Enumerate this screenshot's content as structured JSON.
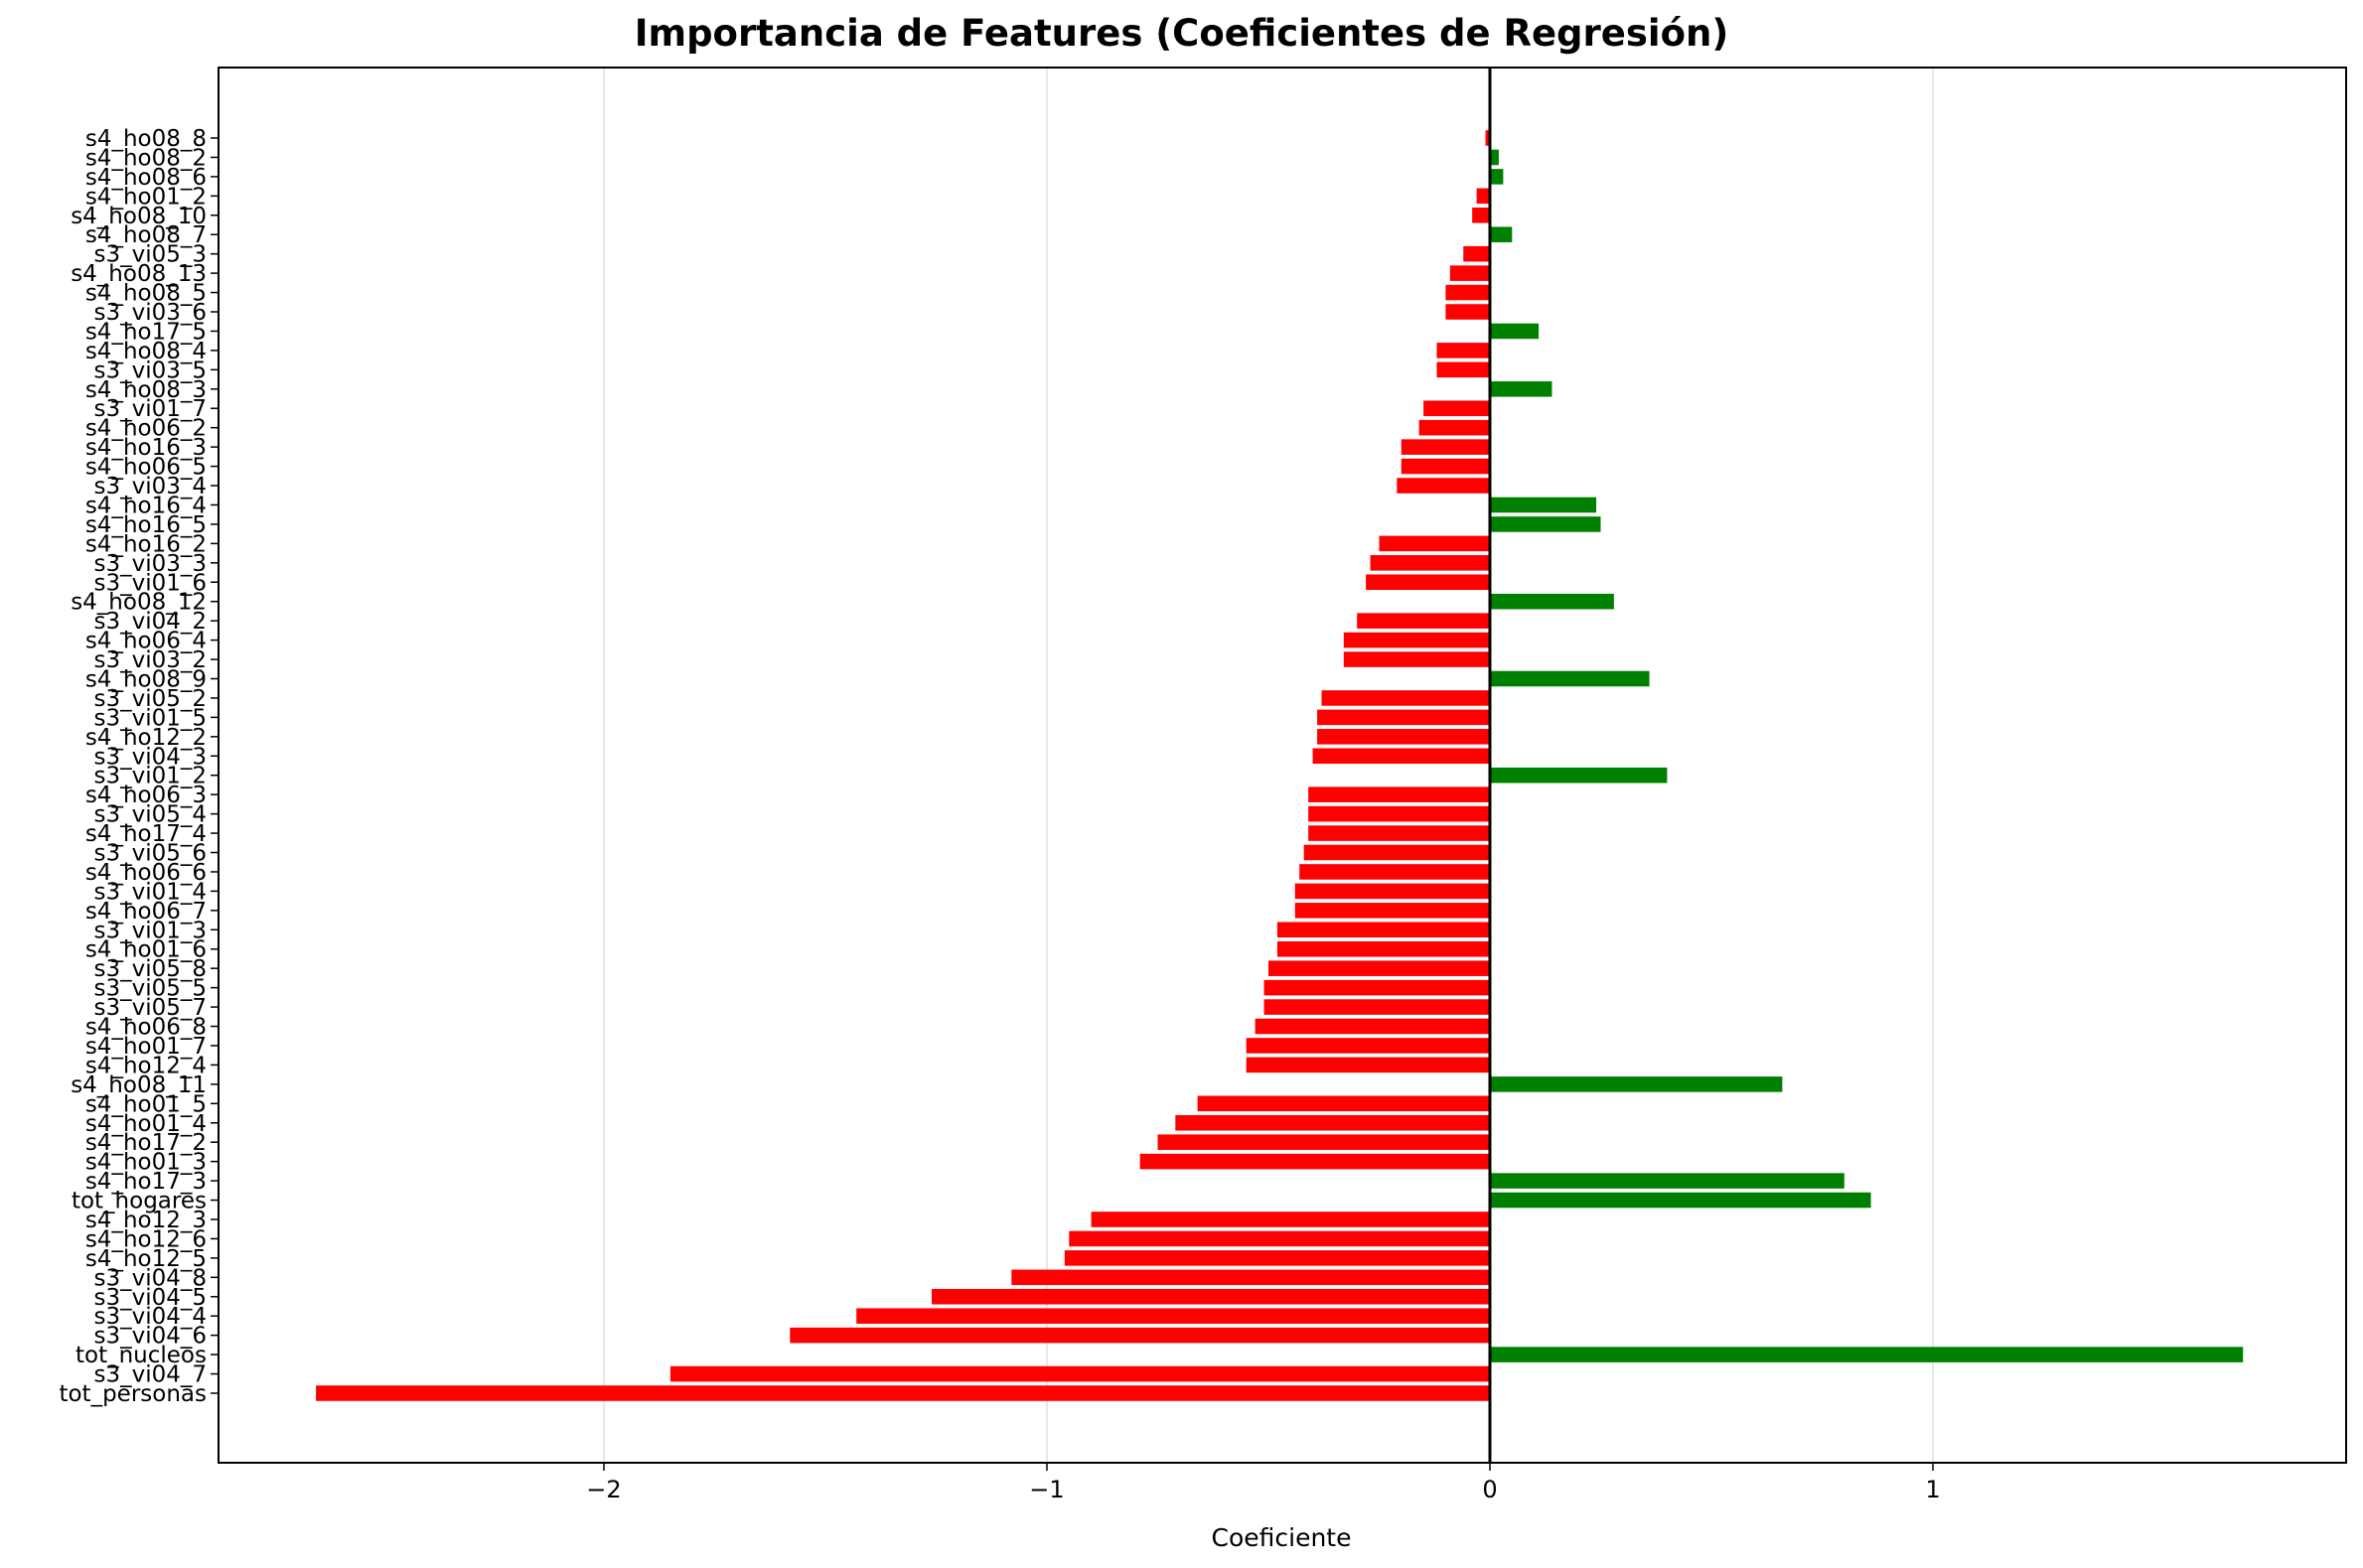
{
  "chart_data": {
    "type": "bar",
    "orientation": "horizontal",
    "title": "Importancia de Features (Coeficientes de Regresión)",
    "xlabel": "Coeficiente",
    "ylabel": "",
    "xlim": [
      -2.86,
      1.92
    ],
    "xticks": [
      -2,
      -1,
      0,
      1
    ],
    "xtick_labels": [
      "−2",
      "−1",
      "0",
      "1"
    ],
    "grid": "x",
    "colors": {
      "positive": "#008000",
      "negative": "#ff0000",
      "zero_line": "#000000",
      "grid": "#e0e0e0"
    },
    "categories": [
      "s4_ho08_8",
      "s4_ho08_2",
      "s4_ho08_6",
      "s4_ho01_2",
      "s4_ho08_10",
      "s4_ho08_7",
      "s3_vi05_3",
      "s4_ho08_13",
      "s4_ho08_5",
      "s3_vi03_6",
      "s4_ho17_5",
      "s4_ho08_4",
      "s3_vi03_5",
      "s4_ho08_3",
      "s3_vi01_7",
      "s4_ho06_2",
      "s4_ho16_3",
      "s4_ho06_5",
      "s3_vi03_4",
      "s4_ho16_4",
      "s4_ho16_5",
      "s4_ho16_2",
      "s3_vi03_3",
      "s3_vi01_6",
      "s4_ho08_12",
      "s3_vi04_2",
      "s4_ho06_4",
      "s3_vi03_2",
      "s4_ho08_9",
      "s3_vi05_2",
      "s3_vi01_5",
      "s4_ho12_2",
      "s3_vi04_3",
      "s3_vi01_2",
      "s4_ho06_3",
      "s3_vi05_4",
      "s4_ho17_4",
      "s3_vi05_6",
      "s4_ho06_6",
      "s3_vi01_4",
      "s4_ho06_7",
      "s3_vi01_3",
      "s4_ho01_6",
      "s3_vi05_8",
      "s3_vi05_5",
      "s3_vi05_7",
      "s4_ho06_8",
      "s4_ho01_7",
      "s4_ho12_4",
      "s4_ho08_11",
      "s4_ho01_5",
      "s4_ho01_4",
      "s4_ho17_2",
      "s4_ho01_3",
      "s4_ho17_3",
      "tot_hogares",
      "s4_ho12_3",
      "s4_ho12_6",
      "s4_ho12_5",
      "s3_vi04_8",
      "s3_vi04_5",
      "s3_vi04_4",
      "s3_vi04_6",
      "tot_nucleos",
      "s3_vi04_7",
      "tot_personas"
    ],
    "values": [
      -0.01,
      0.02,
      0.03,
      -0.03,
      -0.04,
      0.05,
      -0.06,
      -0.09,
      -0.1,
      -0.1,
      0.11,
      -0.12,
      -0.12,
      0.14,
      -0.15,
      -0.16,
      -0.2,
      -0.2,
      -0.21,
      0.24,
      0.25,
      -0.25,
      -0.27,
      -0.28,
      0.28,
      -0.3,
      -0.33,
      -0.33,
      0.36,
      -0.38,
      -0.39,
      -0.39,
      -0.4,
      0.4,
      -0.41,
      -0.41,
      -0.41,
      -0.42,
      -0.43,
      -0.44,
      -0.44,
      -0.48,
      -0.48,
      -0.5,
      -0.51,
      -0.51,
      -0.53,
      -0.55,
      -0.55,
      0.66,
      -0.66,
      -0.71,
      -0.75,
      -0.79,
      0.8,
      0.86,
      -0.9,
      -0.95,
      -0.96,
      -1.08,
      -1.26,
      -1.43,
      -1.58,
      1.7,
      -1.85,
      -2.65
    ]
  }
}
